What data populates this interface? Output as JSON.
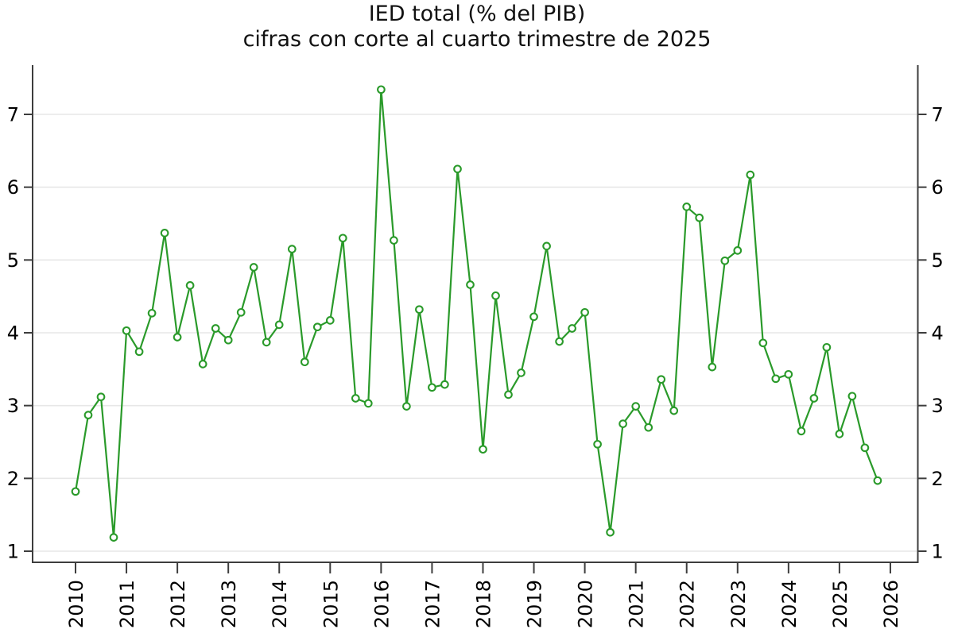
{
  "title": {
    "line1": "IED total (% del PIB)",
    "line2": "cifras con corte al cuarto trimestre de 2025"
  },
  "chart_data": {
    "type": "line",
    "title": "IED total (% del PIB)",
    "subtitle": "cifras con corte al cuarto trimestre de 2025",
    "x_unit": "quarter",
    "quarters": [
      "2010Q1",
      "2010Q2",
      "2010Q3",
      "2010Q4",
      "2011Q1",
      "2011Q2",
      "2011Q3",
      "2011Q4",
      "2012Q1",
      "2012Q2",
      "2012Q3",
      "2012Q4",
      "2013Q1",
      "2013Q2",
      "2013Q3",
      "2013Q4",
      "2014Q1",
      "2014Q2",
      "2014Q3",
      "2014Q4",
      "2015Q1",
      "2015Q2",
      "2015Q3",
      "2015Q4",
      "2016Q1",
      "2016Q2",
      "2016Q3",
      "2016Q4",
      "2017Q1",
      "2017Q2",
      "2017Q3",
      "2017Q4",
      "2018Q1",
      "2018Q2",
      "2018Q3",
      "2018Q4",
      "2019Q1",
      "2019Q2",
      "2019Q3",
      "2019Q4",
      "2020Q1",
      "2020Q2",
      "2020Q3",
      "2020Q4",
      "2021Q1",
      "2021Q2",
      "2021Q3",
      "2021Q4",
      "2022Q1",
      "2022Q2",
      "2022Q3",
      "2022Q4",
      "2023Q1",
      "2023Q2",
      "2023Q3",
      "2023Q4",
      "2024Q1",
      "2024Q2",
      "2024Q3",
      "2024Q4",
      "2025Q1",
      "2025Q2",
      "2025Q3",
      "2025Q4"
    ],
    "values": [
      1.82,
      2.87,
      3.12,
      1.19,
      4.03,
      3.74,
      4.27,
      5.37,
      3.94,
      4.65,
      3.57,
      4.06,
      3.9,
      4.28,
      4.9,
      3.87,
      4.11,
      5.15,
      3.6,
      4.08,
      4.17,
      5.3,
      3.1,
      3.03,
      7.34,
      5.27,
      2.99,
      4.32,
      3.25,
      3.29,
      6.25,
      4.66,
      2.4,
      4.51,
      3.15,
      3.45,
      4.22,
      5.19,
      3.88,
      4.06,
      4.28,
      2.47,
      1.26,
      2.75,
      2.99,
      2.7,
      3.36,
      2.93,
      5.73,
      5.58,
      3.53,
      4.99,
      5.13,
      6.17,
      3.86,
      3.37,
      3.43,
      2.65,
      3.1,
      3.8,
      2.61,
      3.13,
      2.42,
      1.97
    ],
    "series": [
      {
        "name": "IED total (% del PIB)",
        "color": "#2a9a2a",
        "marker": "open-circle"
      }
    ],
    "x_tick_labels": [
      "2010",
      "2011",
      "2012",
      "2013",
      "2014",
      "2015",
      "2016",
      "2017",
      "2018",
      "2019",
      "2020",
      "2021",
      "2022",
      "2023",
      "2024",
      "2025",
      "2026"
    ],
    "y_tick_labels": [
      "1",
      "2",
      "3",
      "4",
      "5",
      "6",
      "7"
    ],
    "ylim": [
      0.8,
      7.68
    ],
    "grid": "horizontal",
    "legend": "none",
    "x_label_rotation": -90,
    "colors": {
      "line": "#2a9a2a",
      "marker_fill": "#ffffff",
      "axis": "#3d3d3d",
      "grid": "#e7e7e7",
      "text": "#000000"
    }
  }
}
